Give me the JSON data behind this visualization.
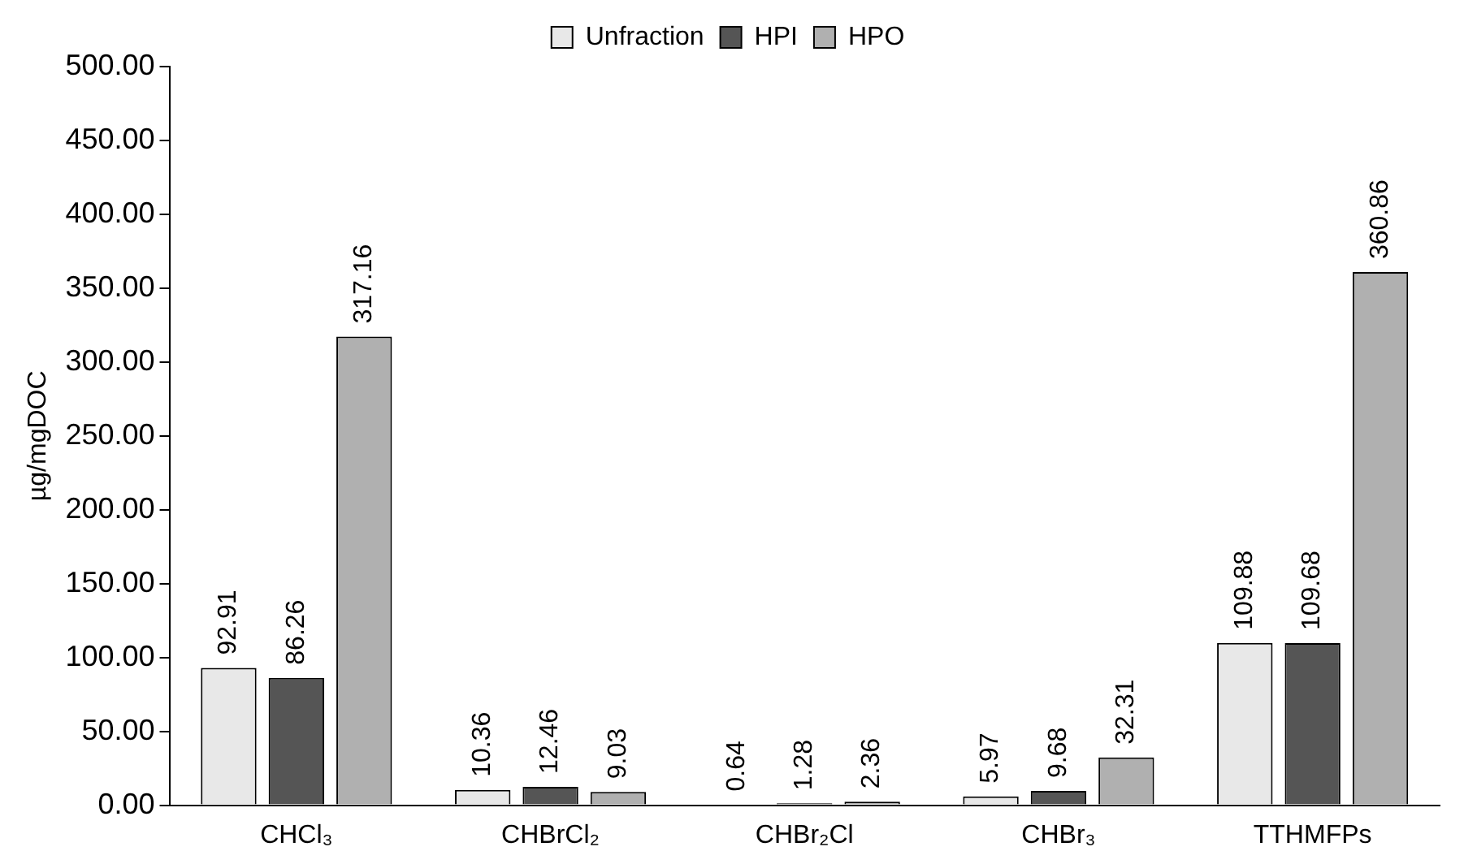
{
  "chart_data": {
    "type": "bar",
    "ylabel": "µg/mgDOC",
    "categories": [
      "CHCl₃",
      "CHBrCl₂",
      "CHBr₂Cl",
      "CHBr₃",
      "TTHMFPs"
    ],
    "series": [
      {
        "name": "Unfraction",
        "color": "#e8e8e8",
        "values": [
          92.91,
          10.36,
          0.64,
          5.97,
          109.88
        ],
        "value_labels": [
          "92.91",
          "10.36",
          "0.64",
          "5.97",
          "109.88"
        ]
      },
      {
        "name": "HPI",
        "color": "#555555",
        "values": [
          86.26,
          12.46,
          1.28,
          9.68,
          109.68
        ],
        "value_labels": [
          "86.26",
          "12.46",
          "1.28",
          "9.68",
          "109.68"
        ]
      },
      {
        "name": "HPO",
        "color": "#b0b0b0",
        "values": [
          317.16,
          9.03,
          2.36,
          32.31,
          360.86
        ],
        "value_labels": [
          "317.16",
          "9.03",
          "2.36",
          "32.31",
          "360.86"
        ]
      }
    ],
    "ylim": [
      0,
      500
    ],
    "yticks": [
      {
        "value": 0,
        "label": "0.00"
      },
      {
        "value": 50,
        "label": "50.00"
      },
      {
        "value": 100,
        "label": "100.00"
      },
      {
        "value": 150,
        "label": "150.00"
      },
      {
        "value": 200,
        "label": "200.00"
      },
      {
        "value": 250,
        "label": "250.00"
      },
      {
        "value": 300,
        "label": "300.00"
      },
      {
        "value": 350,
        "label": "350.00"
      },
      {
        "value": 400,
        "label": "400.00"
      },
      {
        "value": 450,
        "label": "450.00"
      },
      {
        "value": 500,
        "label": "500.00"
      }
    ],
    "grid": false,
    "legend": "top"
  }
}
